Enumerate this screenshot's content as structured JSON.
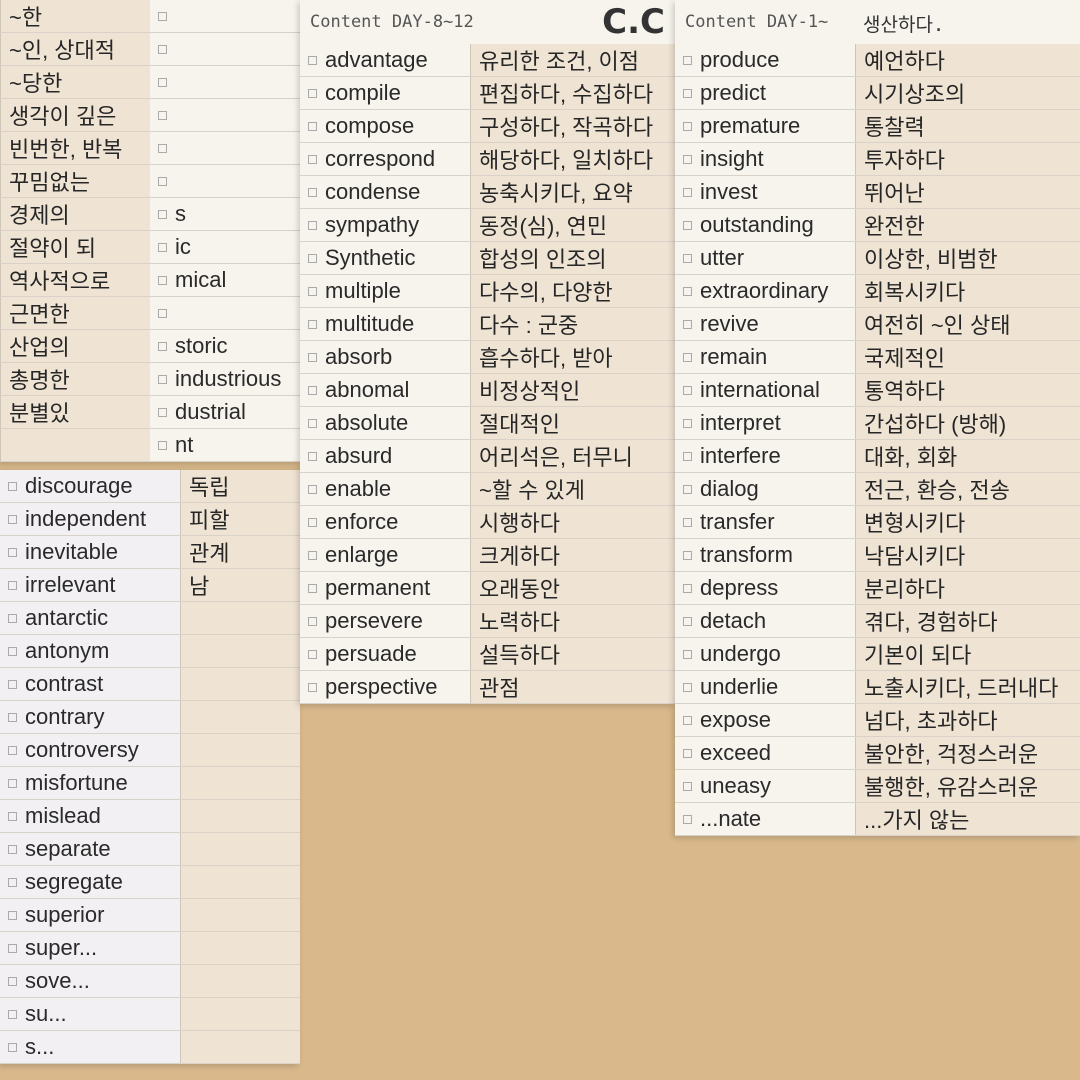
{
  "sheets": [
    {
      "id": "sheet-back-left",
      "header": "",
      "header_ko": "",
      "rows": [
        {
          "en": "",
          "ko": "~한"
        },
        {
          "en": "",
          "ko": "~인, 상대적"
        },
        {
          "en": "",
          "ko": "~당한"
        },
        {
          "en": "",
          "ko": "생각이 깊은"
        },
        {
          "en": "",
          "ko": "빈번한, 반복"
        },
        {
          "en": "",
          "ko": "꾸밈없는"
        },
        {
          "en": "s",
          "ko": "경제의"
        },
        {
          "en": "ic",
          "ko": "절약이 되"
        },
        {
          "en": "mical",
          "ko": "역사적으로"
        },
        {
          "en": "",
          "ko": "근면한"
        },
        {
          "en": "storic",
          "ko": "산업의"
        },
        {
          "en": "industrious",
          "ko": "총명한"
        },
        {
          "en": "dustrial",
          "ko": "분별있"
        },
        {
          "en": "nt",
          "ko": ""
        }
      ]
    },
    {
      "id": "sheet-day-8-12",
      "header": "Content DAY-8~12",
      "header_ko": "",
      "rows": [
        {
          "en": "advantage",
          "ko": "유리한 조건, 이점"
        },
        {
          "en": "compile",
          "ko": "편집하다, 수집하다"
        },
        {
          "en": "compose",
          "ko": "구성하다, 작곡하다"
        },
        {
          "en": "correspond",
          "ko": "해당하다, 일치하다"
        },
        {
          "en": "condense",
          "ko": "농축시키다, 요약"
        },
        {
          "en": "sympathy",
          "ko": "동정(심), 연민"
        },
        {
          "en": "Synthetic",
          "ko": "합성의 인조의"
        },
        {
          "en": "multiple",
          "ko": "다수의, 다양한"
        },
        {
          "en": "multitude",
          "ko": "다수 : 군중"
        },
        {
          "en": "absorb",
          "ko": "흡수하다, 받아"
        },
        {
          "en": "abnomal",
          "ko": "비정상적인"
        },
        {
          "en": "absolute",
          "ko": "절대적인"
        },
        {
          "en": "absurd",
          "ko": "어리석은, 터무니"
        },
        {
          "en": "enable",
          "ko": "~할 수 있게"
        },
        {
          "en": "enforce",
          "ko": "시행하다"
        },
        {
          "en": "enlarge",
          "ko": "크게하다"
        },
        {
          "en": "permanent",
          "ko": "오래동안"
        },
        {
          "en": "persevere",
          "ko": "노력하다"
        },
        {
          "en": "persuade",
          "ko": "설득하다"
        },
        {
          "en": "perspective",
          "ko": "관점"
        }
      ]
    },
    {
      "id": "sheet-day-1-7",
      "header": "Content DAY-1~",
      "header_ko": "생산하다.",
      "rows": [
        {
          "en": "produce",
          "ko": "예언하다"
        },
        {
          "en": "predict",
          "ko": "시기상조의"
        },
        {
          "en": "premature",
          "ko": "통찰력"
        },
        {
          "en": "insight",
          "ko": "투자하다"
        },
        {
          "en": "invest",
          "ko": "뛰어난"
        },
        {
          "en": "outstanding",
          "ko": "완전한"
        },
        {
          "en": "utter",
          "ko": "이상한, 비범한"
        },
        {
          "en": "extraordinary",
          "ko": "회복시키다"
        },
        {
          "en": "revive",
          "ko": "여전히 ~인 상태"
        },
        {
          "en": "remain",
          "ko": "국제적인"
        },
        {
          "en": "international",
          "ko": "통역하다"
        },
        {
          "en": "interpret",
          "ko": "간섭하다 (방해)"
        },
        {
          "en": "interfere",
          "ko": "대화, 회화"
        },
        {
          "en": "dialog",
          "ko": "전근, 환승, 전송"
        },
        {
          "en": "transfer",
          "ko": "변형시키다"
        },
        {
          "en": "transform",
          "ko": "낙담시키다"
        },
        {
          "en": "depress",
          "ko": "분리하다"
        },
        {
          "en": "detach",
          "ko": "겪다, 경험하다"
        },
        {
          "en": "undergo",
          "ko": "기본이 되다"
        },
        {
          "en": "underlie",
          "ko": "노출시키다, 드러내다"
        },
        {
          "en": "expose",
          "ko": "넘다, 초과하다"
        },
        {
          "en": "exceed",
          "ko": "불안한, 걱정스러운"
        },
        {
          "en": "uneasy",
          "ko": "불행한, 유감스러운"
        },
        {
          "en": "...nate",
          "ko": "...가지 않는"
        }
      ]
    },
    {
      "id": "sheet-right",
      "header": "",
      "header_ko": "",
      "rows": [
        {
          "en": "discourage",
          "ko": "독립"
        },
        {
          "en": "independent",
          "ko": "피할"
        },
        {
          "en": "inevitable",
          "ko": "관계"
        },
        {
          "en": "irrelevant",
          "ko": "남"
        },
        {
          "en": "antarctic",
          "ko": ""
        },
        {
          "en": "antonym",
          "ko": ""
        },
        {
          "en": "contrast",
          "ko": ""
        },
        {
          "en": "contrary",
          "ko": ""
        },
        {
          "en": "controversy",
          "ko": ""
        },
        {
          "en": "misfortune",
          "ko": ""
        },
        {
          "en": "mislead",
          "ko": ""
        },
        {
          "en": "separate",
          "ko": ""
        },
        {
          "en": "segregate",
          "ko": ""
        },
        {
          "en": "superior",
          "ko": ""
        },
        {
          "en": "super...",
          "ko": ""
        },
        {
          "en": "sove...",
          "ko": ""
        },
        {
          "en": "su...",
          "ko": ""
        },
        {
          "en": "s...",
          "ko": ""
        }
      ]
    }
  ],
  "logo": "C.C"
}
